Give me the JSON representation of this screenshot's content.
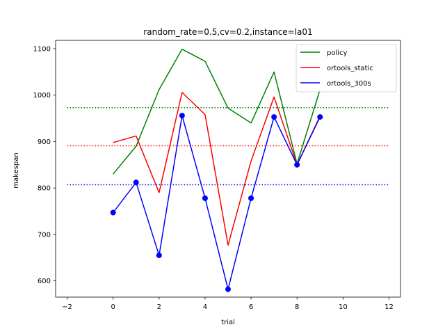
{
  "chart_data": {
    "type": "line",
    "title": "random_rate=0.5,cv=0.2,instance=la01",
    "xlabel": "trial",
    "ylabel": "makespan",
    "xlim": [
      -2.5,
      12.5
    ],
    "ylim": [
      565,
      1118
    ],
    "xticks": [
      -2,
      0,
      2,
      4,
      6,
      8,
      10,
      12
    ],
    "xtick_labels": [
      "−2",
      "0",
      "2",
      "4",
      "6",
      "8",
      "10",
      "12"
    ],
    "yticks": [
      600,
      700,
      800,
      900,
      1000,
      1100
    ],
    "ytick_labels": [
      "600",
      "700",
      "800",
      "900",
      "1000",
      "1100"
    ],
    "grid": false,
    "legend_position": "upper right",
    "x": [
      0,
      1,
      2,
      3,
      4,
      5,
      6,
      7,
      8,
      9
    ],
    "series": [
      {
        "name": "policy",
        "color": "#008000",
        "values": [
          830,
          890,
          1012,
          1099,
          1073,
          972,
          940,
          1050,
          852,
          1012
        ],
        "markers": false,
        "mean": 973,
        "mean_range": [
          -2,
          12
        ]
      },
      {
        "name": "ortools_static",
        "color": "#ff0000",
        "values": [
          898,
          912,
          790,
          1006,
          958,
          677,
          858,
          996,
          850,
          955
        ],
        "markers": false,
        "mean": 891,
        "mean_range": [
          -2,
          12
        ]
      },
      {
        "name": "ortools_300s",
        "color": "#0000ff",
        "values": [
          747,
          812,
          655,
          956,
          778,
          582,
          778,
          953,
          850,
          953
        ],
        "markers": true,
        "mean": 807,
        "mean_range": [
          -2,
          12
        ]
      }
    ]
  }
}
